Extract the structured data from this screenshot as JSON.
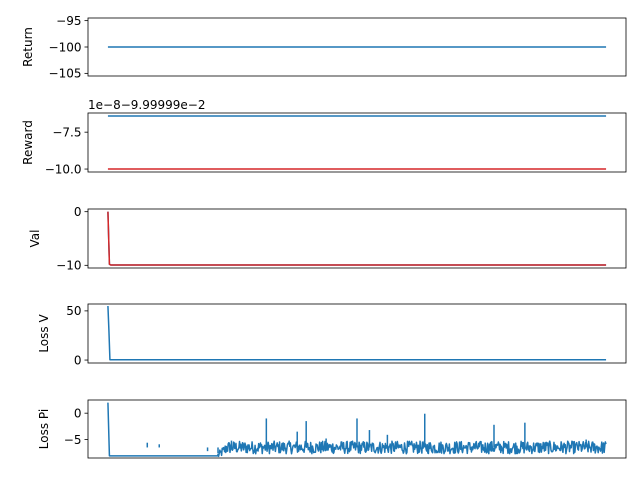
{
  "chart_data": [
    {
      "type": "line",
      "ylabel": "Return",
      "ylim": [
        -105.5,
        -94.5
      ],
      "yticks": [
        -95,
        -100,
        -105
      ],
      "ytick_labels": [
        "−95",
        "−100",
        "−105"
      ],
      "grid": false,
      "series": [
        {
          "color": "#1f77b4",
          "x": [
            0,
            1000
          ],
          "values": [
            -100,
            -100
          ]
        }
      ]
    },
    {
      "type": "line",
      "ylabel": "Reward",
      "offset_text": "1e−8−9.99999e−2",
      "ylim": [
        -10.2,
        -6.2
      ],
      "yticks": [
        -7.5,
        -10.0
      ],
      "ytick_labels": [
        "−7.5",
        "−10.0"
      ],
      "grid": false,
      "series": [
        {
          "color": "#1f77b4",
          "x": [
            0,
            1000
          ],
          "values": [
            -6.4,
            -6.4
          ]
        },
        {
          "color": "#d62728",
          "x": [
            0,
            1000
          ],
          "values": [
            -10.0,
            -10.0
          ]
        }
      ]
    },
    {
      "type": "line",
      "ylabel": "Val",
      "ylim": [
        -10.5,
        0.5
      ],
      "yticks": [
        0,
        -10
      ],
      "ytick_labels": [
        "0",
        "−10"
      ],
      "grid": false,
      "series": [
        {
          "color": "#1f77b4",
          "x": [
            0,
            3,
            6,
            1000
          ],
          "values": [
            0,
            -9.8,
            -9.95,
            -9.95
          ]
        },
        {
          "color": "#d62728",
          "x": [
            0,
            3,
            6,
            1000
          ],
          "values": [
            0,
            -9.8,
            -9.95,
            -9.95
          ]
        }
      ]
    },
    {
      "type": "line",
      "ylabel": "Loss V",
      "ylim": [
        -3,
        57
      ],
      "yticks": [
        50,
        0
      ],
      "ytick_labels": [
        "50",
        "0"
      ],
      "grid": false,
      "series": [
        {
          "color": "#1f77b4",
          "x": [
            0,
            2,
            4,
            1000
          ],
          "values": [
            55,
            30,
            0.3,
            0.3
          ]
        }
      ]
    },
    {
      "type": "line",
      "ylabel": "Loss Pi",
      "ylim": [
        -8.5,
        2.5
      ],
      "yticks": [
        0,
        -5
      ],
      "ytick_labels": [
        "0",
        "−5"
      ],
      "grid": false,
      "series": [
        {
          "color": "#1f77b4",
          "noisy": true,
          "x": [
            0,
            3,
            220,
            240,
            1000
          ],
          "values": [
            2,
            -8.1,
            -8.1,
            -6.5,
            -6.5
          ]
        }
      ],
      "spikes": [
        {
          "x": 79,
          "y": -5.6
        },
        {
          "x": 103,
          "y": -5.9
        },
        {
          "x": 200,
          "y": -7.2
        },
        {
          "x": 221,
          "y": -7.6
        },
        {
          "x": 238,
          "y": -6.2
        },
        {
          "x": 248,
          "y": -5.2
        },
        {
          "x": 318,
          "y": -1.0
        },
        {
          "x": 380,
          "y": -3.5
        },
        {
          "x": 398,
          "y": -1.5
        },
        {
          "x": 438,
          "y": -4.8
        },
        {
          "x": 500,
          "y": -1.0
        },
        {
          "x": 525,
          "y": -3.2
        },
        {
          "x": 561,
          "y": -4.1
        },
        {
          "x": 636,
          "y": -0.1
        },
        {
          "x": 775,
          "y": -2.2
        },
        {
          "x": 837,
          "y": -1.8
        },
        {
          "x": 960,
          "y": -5.0
        }
      ]
    }
  ]
}
